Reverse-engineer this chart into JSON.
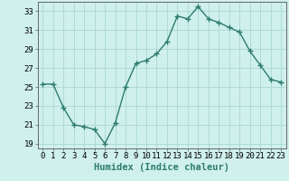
{
  "x": [
    0,
    1,
    2,
    3,
    4,
    5,
    6,
    7,
    8,
    9,
    10,
    11,
    12,
    13,
    14,
    15,
    16,
    17,
    18,
    19,
    20,
    21,
    22,
    23
  ],
  "y": [
    25.3,
    25.3,
    22.8,
    21.0,
    20.8,
    20.5,
    19.0,
    21.2,
    25.0,
    27.5,
    27.8,
    28.5,
    29.8,
    32.5,
    32.2,
    33.5,
    32.2,
    31.8,
    31.3,
    30.8,
    28.8,
    27.3,
    25.8,
    25.5
  ],
  "xlabel": "Humidex (Indice chaleur)",
  "xlim": [
    -0.5,
    23.5
  ],
  "ylim": [
    18.5,
    34.0
  ],
  "yticks": [
    19,
    21,
    23,
    25,
    27,
    29,
    31,
    33
  ],
  "xticks": [
    0,
    1,
    2,
    3,
    4,
    5,
    6,
    7,
    8,
    9,
    10,
    11,
    12,
    13,
    14,
    15,
    16,
    17,
    18,
    19,
    20,
    21,
    22,
    23
  ],
  "line_color": "#2e7b6f",
  "marker": "+",
  "marker_size": 4,
  "bg_color": "#cff0ec",
  "grid_color": "#aad8d3",
  "xlabel_fontsize": 7.5,
  "tick_fontsize": 6.5,
  "line_width": 1.0
}
